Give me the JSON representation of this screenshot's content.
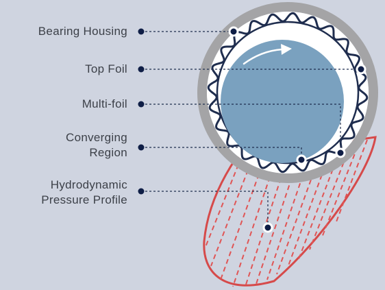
{
  "labels": {
    "bearing_housing": "Bearing Housing",
    "top_foil": "Top Foil",
    "multi_foil": "Multi-foil",
    "converging_region_line1": "Converging",
    "converging_region_line2": "Region",
    "pressure_profile_line1": "Hydrodynamic",
    "pressure_profile_line2": "Pressure Profile"
  },
  "colors": {
    "background": "#cfd4e0",
    "housing": "#a4a4a6",
    "shaft": "#7aa1bf",
    "foil": "#1f2d4e",
    "pressure": "#d64a4a",
    "callout": "#0f1e46",
    "rotation_arrow": "#ffffff"
  }
}
